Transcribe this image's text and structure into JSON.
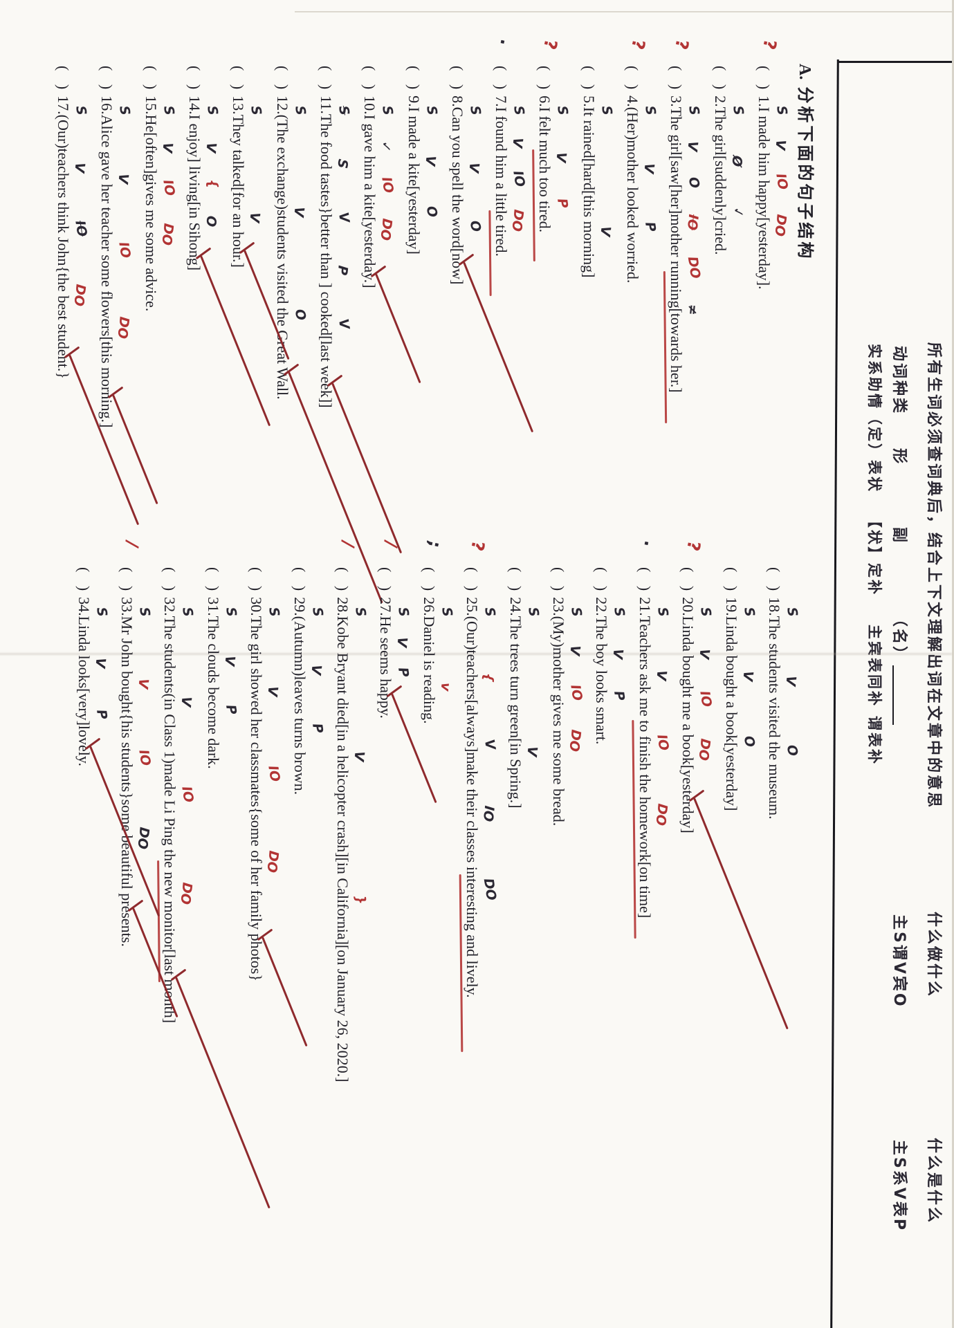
{
  "colors": {
    "paper": "#faf9f5",
    "ink": "#23222a",
    "red": "#b23434",
    "dark_red": "#8f2a2d"
  },
  "header": {
    "instruction": "所有生词必须查词典后，结合上下文理解出词在文章中的意思",
    "pattern_do": "什么做什么",
    "pattern_be": "什么是什么",
    "verb_types_label": "动词种类",
    "adj": "形",
    "adv": "副",
    "noun": "（名）",
    "formula_do": "主S谓V宾O",
    "formula_be": "主S系V表P",
    "verb_kinds": "实系助情（定）表状",
    "adv_roles": "【状】定补",
    "sentence_parts": "主宾表同补",
    "predicate_parts": "谓表补",
    "section_label": "A.",
    "section_title": "分析下面的句子结构"
  },
  "bracket": "(  )",
  "columns": [
    {
      "items": [
        {
          "n": "1.",
          "text": "I made him happy[yesterday].",
          "marks": [
            {
              "t": "S",
              "c": "k"
            },
            {
              "t": "V",
              "c": "k"
            },
            {
              "t": "IO",
              "c": "r"
            },
            {
              "t": "DO",
              "c": "r"
            }
          ],
          "tick": false,
          "uline": null,
          "margin": {
            "t": "?",
            "c": "r"
          }
        },
        {
          "n": "2.",
          "text": "The girl[suddenly]cried.",
          "marks": [
            {
              "t": "S",
              "c": "k"
            },
            {
              "t": "Ø",
              "c": "k"
            },
            {
              "t": "✓",
              "c": "k"
            }
          ],
          "tick": false,
          "uline": null,
          "margin": null
        },
        {
          "n": "3.",
          "text": "The girl[saw[her]mother running[towards her.]",
          "marks": [
            {
              "t": "S",
              "c": "k"
            },
            {
              "t": "V",
              "c": "k"
            },
            {
              "t": "O",
              "c": "k"
            },
            {
              "t": "IO",
              "c": "r",
              "s": 1
            },
            {
              "t": "DO",
              "c": "r"
            },
            {
              "t": "≠",
              "c": "k"
            }
          ],
          "tick": false,
          "uline": [
            0.52,
            1.0
          ],
          "margin": {
            "t": "?",
            "c": "r"
          }
        },
        {
          "n": "4.",
          "text": "(Her)mother looked worried.",
          "marks": [
            {
              "t": "S",
              "c": "k"
            },
            {
              "t": "V",
              "c": "k"
            },
            {
              "t": "P",
              "c": "k"
            }
          ],
          "tick": false,
          "uline": null,
          "margin": {
            "t": "?",
            "c": "r"
          }
        },
        {
          "n": "5.",
          "text": "It rained[hard[this morning]",
          "marks": [
            {
              "t": "S",
              "c": "k"
            },
            {
              "t": "V",
              "c": "k"
            }
          ],
          "tick": false,
          "uline": null,
          "margin": null
        },
        {
          "n": "6.",
          "text": "I felt much too tired.",
          "marks": [
            {
              "t": "S",
              "c": "k"
            },
            {
              "t": "V",
              "c": "k"
            },
            {
              "t": "P",
              "c": "r"
            }
          ],
          "tick": false,
          "uline": [
            0.28,
            1.0
          ],
          "margin": {
            "t": "?",
            "c": "r"
          }
        },
        {
          "n": "7.",
          "text": "I found him a little tired.",
          "marks": [
            {
              "t": "S",
              "c": "k"
            },
            {
              "t": "V",
              "c": "k"
            },
            {
              "t": "IO",
              "c": "k"
            },
            {
              "t": "DO",
              "c": "r"
            }
          ],
          "tick": false,
          "uline": [
            0.55,
            1.0
          ],
          "margin": {
            "t": ".",
            "c": "k"
          }
        },
        {
          "n": "8.",
          "text": "Can you spell the word[now]",
          "marks": [
            {
              "t": "S",
              "c": "k"
            },
            {
              "t": "V",
              "c": "k"
            },
            {
              "t": "O",
              "c": "k"
            }
          ],
          "tick": true,
          "uline": null,
          "margin": null
        },
        {
          "n": "9.",
          "text": "I made a kite[yesterday]",
          "marks": [
            {
              "t": "S",
              "c": "k"
            },
            {
              "t": "V",
              "c": "k"
            },
            {
              "t": "O",
              "c": "k"
            }
          ],
          "tick": false,
          "uline": null,
          "margin": null
        },
        {
          "n": "10.",
          "text": "I gave him a kite[yesterday.]",
          "marks": [
            {
              "t": "S",
              "c": "k"
            },
            {
              "t": "✓",
              "c": "k"
            },
            {
              "t": "IO",
              "c": "r"
            },
            {
              "t": "DO",
              "c": "r"
            }
          ],
          "tick": true,
          "uline": null,
          "margin": null
        },
        {
          "n": "11.",
          "text": "The food tastes}better than ] cooked[last week]]",
          "marks": [
            {
              "t": "S",
              "c": "k",
              "s": 1
            },
            {
              "t": "S",
              "c": "k"
            },
            {
              "t": "V",
              "c": "k"
            },
            {
              "t": "P",
              "c": "k"
            },
            {
              "t": "V",
              "c": "k"
            }
          ],
          "tick": true,
          "uline": null,
          "margin": null
        },
        {
          "n": "12.",
          "text": "(The exchange)students visited the Great Wall.",
          "marks": [
            {
              "t": "S",
              "c": "k"
            },
            {
              "t": "V",
              "c": "k"
            },
            {
              "t": "O",
              "c": "k"
            }
          ],
          "tick": true,
          "uline": null,
          "margin": null
        },
        {
          "n": "13.",
          "text": "They talked[for an hour.]",
          "marks": [
            {
              "t": "S",
              "c": "k"
            },
            {
              "t": "V",
              "c": "k"
            }
          ],
          "tick": true,
          "uline": null,
          "margin": null
        },
        {
          "n": "14.",
          "text": "I enjoy] living[in Sihong]",
          "marks": [
            {
              "t": "S",
              "c": "k"
            },
            {
              "t": "V",
              "c": "k"
            },
            {
              "t": "{",
              "c": "r"
            },
            {
              "t": "O",
              "c": "k"
            }
          ],
          "tick": true,
          "uline": null,
          "margin": null
        },
        {
          "n": "15.",
          "text": "He[often]gives me some advice.",
          "marks": [
            {
              "t": "S",
              "c": "k"
            },
            {
              "t": "V",
              "c": "k"
            },
            {
              "t": "IO",
              "c": "r"
            },
            {
              "t": "DO",
              "c": "r"
            }
          ],
          "tick": false,
          "uline": null,
          "margin": null
        },
        {
          "n": "16.",
          "text": "Alice gave her teacher some flowers[this morning.]",
          "marks": [
            {
              "t": "S",
              "c": "k"
            },
            {
              "t": "V",
              "c": "k"
            },
            {
              "t": "IO",
              "c": "r"
            },
            {
              "t": "DO",
              "c": "r"
            }
          ],
          "tick": true,
          "uline": null,
          "margin": null
        },
        {
          "n": "17.",
          "text": "(Our)teachers think John{the best student.}",
          "marks": [
            {
              "t": "S",
              "c": "k"
            },
            {
              "t": "V",
              "c": "k"
            },
            {
              "t": "IO",
              "c": "k",
              "s": 1
            },
            {
              "t": "DO",
              "c": "r"
            }
          ],
          "tick": true,
          "uline": null,
          "margin": null
        }
      ]
    },
    {
      "items": [
        {
          "n": "18.",
          "text": "The students visited the museum.",
          "marks": [
            {
              "t": "S",
              "c": "k"
            },
            {
              "t": "V",
              "c": "k"
            },
            {
              "t": "O",
              "c": "k"
            }
          ],
          "tick": false,
          "uline": null,
          "margin": null
        },
        {
          "n": "19.",
          "text": "Linda bought a book[yesterday]",
          "marks": [
            {
              "t": "S",
              "c": "k"
            },
            {
              "t": "V",
              "c": "k"
            },
            {
              "t": "O",
              "c": "k"
            }
          ],
          "tick": false,
          "uline": null,
          "margin": null
        },
        {
          "n": "20.",
          "text": "Linda bought me a book[yesterday]",
          "marks": [
            {
              "t": "S",
              "c": "k"
            },
            {
              "t": "V",
              "c": "k"
            },
            {
              "t": "IO",
              "c": "r"
            },
            {
              "t": "DO",
              "c": "r"
            }
          ],
          "tick": true,
          "uline": null,
          "margin": {
            "t": "?",
            "c": "r"
          }
        },
        {
          "n": "21.",
          "text": "Teachers ask me to finish the homework[on time]",
          "marks": [
            {
              "t": "S",
              "c": "k"
            },
            {
              "t": "V",
              "c": "k"
            },
            {
              "t": "IO",
              "c": "r"
            },
            {
              "t": "DO",
              "c": "r"
            }
          ],
          "tick": false,
          "uline": [
            0.34,
            1.0
          ],
          "margin": {
            "t": ".",
            "c": "k"
          }
        },
        {
          "n": "22.",
          "text": "The boy looks smart.",
          "marks": [
            {
              "t": "S",
              "c": "k"
            },
            {
              "t": "V",
              "c": "k"
            },
            {
              "t": "P",
              "c": "k"
            }
          ],
          "tick": false,
          "uline": null,
          "margin": null
        },
        {
          "n": "23.",
          "text": "(My)mother gives me some bread.",
          "marks": [
            {
              "t": "S",
              "c": "k"
            },
            {
              "t": "V",
              "c": "k"
            },
            {
              "t": "IO",
              "c": "r"
            },
            {
              "t": "DO",
              "c": "r"
            }
          ],
          "tick": false,
          "uline": null,
          "margin": null
        },
        {
          "n": "24.",
          "text": "The trees turn green[in Spring.]",
          "marks": [
            {
              "t": "S",
              "c": "k"
            },
            {
              "t": "V",
              "c": "k"
            }
          ],
          "tick": false,
          "uline": null,
          "margin": null
        },
        {
          "n": "25.",
          "text": "(Our)teachers[always]make their classes interesting and lively.",
          "marks": [
            {
              "t": "S",
              "c": "k"
            },
            {
              "t": "{",
              "c": "r"
            },
            {
              "t": "V",
              "c": "k"
            },
            {
              "t": "IO",
              "c": "k"
            },
            {
              "t": "DO",
              "c": "k"
            }
          ],
          "tick": false,
          "uline": [
            0.6,
            1.0
          ],
          "margin": {
            "t": "?",
            "c": "r"
          }
        },
        {
          "n": "26.",
          "text": "Daniel is reading.",
          "marks": [
            {
              "t": "S",
              "c": "k"
            },
            {
              "t": "v",
              "c": "r"
            }
          ],
          "tick": false,
          "uline": null,
          "margin": {
            "t": ";",
            "c": "k"
          }
        },
        {
          "n": "27.",
          "text": "He seems happy.",
          "marks": [
            {
              "t": "S",
              "c": "k"
            },
            {
              "t": "V",
              "c": "k"
            },
            {
              "t": "P",
              "c": "k"
            }
          ],
          "tick": true,
          "uline": null,
          "margin": {
            "t": "/",
            "c": "r"
          }
        },
        {
          "n": "28.",
          "text": "Kobe Bryant died[in a helicopter crash][in California][on January 26, 2020.]",
          "marks": [
            {
              "t": "S",
              "c": "k"
            },
            {
              "t": "V",
              "c": "k"
            },
            {
              "t": "}",
              "c": "r"
            }
          ],
          "tick": false,
          "uline": null,
          "margin": {
            "t": "/",
            "c": "r"
          }
        },
        {
          "n": "29.",
          "text": "(Autumn)leaves turns brown.",
          "marks": [
            {
              "t": "S",
              "c": "k"
            },
            {
              "t": "V",
              "c": "k"
            },
            {
              "t": "P",
              "c": "k"
            }
          ],
          "tick": false,
          "uline": null,
          "margin": null
        },
        {
          "n": "30.",
          "text": "The girl showed her classmates{some of her family photos}",
          "marks": [
            {
              "t": "S",
              "c": "k"
            },
            {
              "t": "V",
              "c": "k"
            },
            {
              "t": "IO",
              "c": "r"
            },
            {
              "t": "DO",
              "c": "r"
            }
          ],
          "tick": true,
          "uline": null,
          "margin": null
        },
        {
          "n": "31.",
          "text": "The clouds become dark.",
          "marks": [
            {
              "t": "S",
              "c": "k"
            },
            {
              "t": "V",
              "c": "k"
            },
            {
              "t": "P",
              "c": "k"
            }
          ],
          "tick": false,
          "uline": null,
          "margin": null
        },
        {
          "n": "32.",
          "text": "The students(in Class 1)made Li Ping the new monitor[last month]",
          "marks": [
            {
              "t": "S",
              "c": "k"
            },
            {
              "t": "V",
              "c": "k"
            },
            {
              "t": "IO",
              "c": "r"
            },
            {
              "t": "DO",
              "c": "r"
            }
          ],
          "tick": true,
          "uline": [
            0.56,
            0.83
          ],
          "margin": null
        },
        {
          "n": "33.",
          "text": "Mr John bought{his students}some beautiful presents.",
          "marks": [
            {
              "t": "S",
              "c": "k"
            },
            {
              "t": "V",
              "c": "r"
            },
            {
              "t": "IO",
              "c": "r"
            },
            {
              "t": "DO",
              "c": "k"
            }
          ],
          "tick": true,
          "uline": null,
          "margin": {
            "t": "/",
            "c": "r"
          }
        },
        {
          "n": "34.",
          "text": "Linda looks[very]lovely.",
          "marks": [
            {
              "t": "S",
              "c": "k"
            },
            {
              "t": "V",
              "c": "k"
            },
            {
              "t": "P",
              "c": "k"
            }
          ],
          "tick": true,
          "uline": null,
          "margin": null
        }
      ]
    }
  ]
}
